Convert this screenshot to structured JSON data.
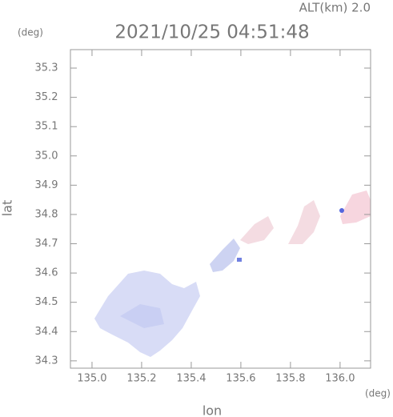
{
  "chart_data": {
    "type": "map",
    "title": "2021/10/25 04:51:48",
    "altitude_label": "ALT(km) 2.0",
    "x_unit": "(deg)",
    "y_unit": "(deg)",
    "xlabel": "lon",
    "ylabel": "lat",
    "xlim": [
      134.913,
      136.123
    ],
    "ylim": [
      34.275,
      35.363
    ],
    "xticks": [
      {
        "value": 135,
        "label": "135.0"
      },
      135.2,
      135.4,
      135.6,
      135.8,
      {
        "value": 136,
        "label": "136.0"
      }
    ],
    "yticks": [
      34.3,
      34.4,
      34.5,
      34.6,
      34.7,
      34.8,
      34.9,
      {
        "value": 35,
        "label": "35.0"
      },
      35.1,
      35.2,
      35.3
    ]
  }
}
